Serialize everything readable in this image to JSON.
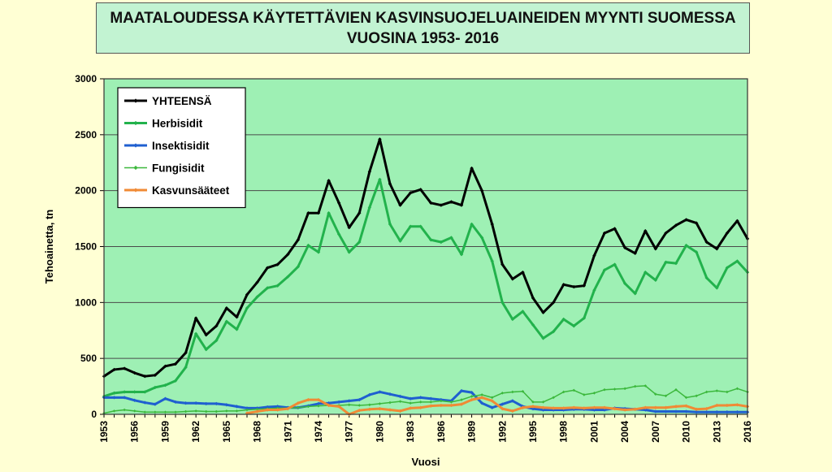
{
  "chart_data": {
    "type": "line",
    "title_line1": "MAATALOUDESSA KÄYTETTÄVIEN KASVINSUOJELUAINEIDEN MYYNTI SUOMESSA",
    "title_line2": "VUOSINA 1953- 2016",
    "xlabel": "Vuosi",
    "ylabel": "Tehoainetta, tn",
    "ylim": [
      0,
      3000
    ],
    "xlim": [
      1953,
      2016
    ],
    "yticks": [
      0,
      500,
      1000,
      1500,
      2000,
      2500,
      3000
    ],
    "xticks": [
      1953,
      1956,
      1959,
      1962,
      1965,
      1968,
      1971,
      1974,
      1977,
      1980,
      1983,
      1986,
      1989,
      1992,
      1995,
      1998,
      2001,
      2004,
      2007,
      2010,
      2013,
      2016
    ],
    "grid": "horizontal",
    "legend_position": "top-left",
    "plot_background": "#9ef0b4",
    "x": [
      1953,
      1954,
      1955,
      1956,
      1957,
      1958,
      1959,
      1960,
      1961,
      1962,
      1963,
      1964,
      1965,
      1966,
      1967,
      1968,
      1969,
      1970,
      1971,
      1972,
      1973,
      1974,
      1975,
      1976,
      1977,
      1978,
      1979,
      1980,
      1981,
      1982,
      1983,
      1984,
      1985,
      1986,
      1987,
      1988,
      1989,
      1990,
      1991,
      1992,
      1993,
      1994,
      1995,
      1996,
      1997,
      1998,
      1999,
      2000,
      2001,
      2002,
      2003,
      2004,
      2005,
      2006,
      2007,
      2008,
      2009,
      2010,
      2011,
      2012,
      2013,
      2014,
      2015,
      2016
    ],
    "series": [
      {
        "name": "YHTEENSÄ",
        "color": "#000000",
        "width": 3,
        "values": [
          340,
          400,
          410,
          370,
          340,
          350,
          430,
          450,
          550,
          860,
          710,
          790,
          950,
          870,
          1070,
          1180,
          1310,
          1340,
          1430,
          1560,
          1800,
          1800,
          2090,
          1890,
          1670,
          1800,
          2170,
          2460,
          2060,
          1870,
          1980,
          2010,
          1890,
          1870,
          1900,
          1870,
          2200,
          2000,
          1700,
          1340,
          1210,
          1270,
          1040,
          910,
          1000,
          1160,
          1140,
          1150,
          1420,
          1620,
          1660,
          1490,
          1440,
          1640,
          1480,
          1620,
          1690,
          1740,
          1710,
          1540,
          1480,
          1620,
          1730,
          1570
        ]
      },
      {
        "name": "Herbisidit",
        "color": "#22b24c",
        "width": 3,
        "values": [
          160,
          190,
          200,
          200,
          200,
          240,
          260,
          300,
          420,
          720,
          580,
          660,
          830,
          760,
          950,
          1050,
          1130,
          1150,
          1230,
          1320,
          1510,
          1450,
          1800,
          1610,
          1450,
          1540,
          1850,
          2100,
          1700,
          1550,
          1680,
          1680,
          1560,
          1540,
          1580,
          1430,
          1700,
          1580,
          1370,
          1000,
          850,
          920,
          800,
          680,
          740,
          850,
          790,
          860,
          1110,
          1290,
          1340,
          1170,
          1080,
          1270,
          1200,
          1360,
          1350,
          1510,
          1450,
          1220,
          1130,
          1310,
          1370,
          1270
        ]
      },
      {
        "name": "Insektisidit",
        "color": "#1f5fd0",
        "width": 3,
        "values": [
          150,
          150,
          150,
          125,
          105,
          90,
          140,
          110,
          100,
          100,
          95,
          95,
          85,
          70,
          55,
          55,
          65,
          70,
          60,
          60,
          75,
          95,
          100,
          110,
          120,
          130,
          175,
          200,
          180,
          160,
          140,
          150,
          140,
          130,
          120,
          210,
          195,
          100,
          60,
          90,
          120,
          70,
          50,
          40,
          40,
          40,
          45,
          45,
          40,
          40,
          55,
          50,
          45,
          40,
          25,
          25,
          25,
          25,
          20,
          20,
          20,
          20,
          20,
          20
        ]
      },
      {
        "name": "Fungisidit",
        "color": "#3cb83c",
        "width": 1.5,
        "values": [
          10,
          30,
          40,
          30,
          20,
          20,
          20,
          20,
          25,
          30,
          25,
          25,
          30,
          30,
          40,
          45,
          50,
          55,
          55,
          60,
          70,
          75,
          80,
          80,
          85,
          80,
          85,
          95,
          105,
          115,
          100,
          110,
          110,
          120,
          110,
          130,
          160,
          175,
          150,
          190,
          200,
          205,
          110,
          110,
          150,
          200,
          215,
          175,
          190,
          220,
          225,
          230,
          250,
          255,
          180,
          165,
          220,
          150,
          165,
          200,
          210,
          200,
          230,
          200
        ]
      },
      {
        "name": "Kasvunsääteet",
        "color": "#f08a35",
        "width": 3,
        "values": [
          null,
          null,
          null,
          null,
          null,
          null,
          null,
          null,
          null,
          null,
          null,
          null,
          null,
          null,
          10,
          25,
          40,
          40,
          50,
          100,
          130,
          130,
          80,
          70,
          0,
          35,
          45,
          50,
          40,
          30,
          55,
          60,
          75,
          80,
          80,
          90,
          130,
          150,
          120,
          50,
          30,
          60,
          70,
          60,
          55,
          55,
          60,
          55,
          60,
          60,
          50,
          40,
          45,
          60,
          60,
          60,
          70,
          75,
          45,
          50,
          80,
          80,
          85,
          70
        ]
      }
    ]
  }
}
